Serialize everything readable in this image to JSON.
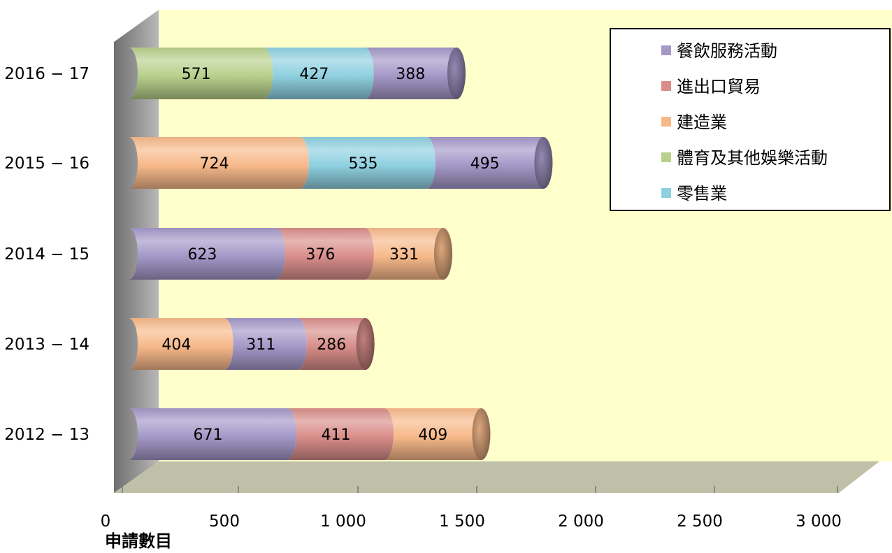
{
  "chart_data": {
    "type": "bar",
    "stacked": true,
    "orientation": "horizontal",
    "style": "3d-cylinder",
    "categories": [
      "2012 − 13",
      "2013 − 14",
      "2014 − 15",
      "2015 − 16",
      "2016 − 17"
    ],
    "bars": [
      {
        "category": "2012 − 13",
        "segments": [
          {
            "series": "餐飲服務活動",
            "value": 671
          },
          {
            "series": "進出口貿易",
            "value": 411
          },
          {
            "series": "建造業",
            "value": 409
          }
        ]
      },
      {
        "category": "2013 − 14",
        "segments": [
          {
            "series": "建造業",
            "value": 404
          },
          {
            "series": "餐飲服務活動",
            "value": 311
          },
          {
            "series": "進出口貿易",
            "value": 286
          }
        ]
      },
      {
        "category": "2014 − 15",
        "segments": [
          {
            "series": "餐飲服務活動",
            "value": 623
          },
          {
            "series": "進出口貿易",
            "value": 376
          },
          {
            "series": "建造業",
            "value": 331
          }
        ]
      },
      {
        "category": "2015 − 16",
        "segments": [
          {
            "series": "建造業",
            "value": 724
          },
          {
            "series": "零售業",
            "value": 535
          },
          {
            "series": "餐飲服務活動",
            "value": 495
          }
        ]
      },
      {
        "category": "2016 − 17",
        "segments": [
          {
            "series": "體育及其他娛樂活動",
            "value": 571
          },
          {
            "series": "零售業",
            "value": 427
          },
          {
            "series": "餐飲服務活動",
            "value": 388
          }
        ]
      }
    ],
    "legend": [
      {
        "name": "餐飲服務活動",
        "color": "#a498c8"
      },
      {
        "name": "進出口貿易",
        "color": "#d98e8a"
      },
      {
        "name": "建造業",
        "color": "#f7b98a"
      },
      {
        "name": "體育及其他娛樂活動",
        "color": "#b8d08c"
      },
      {
        "name": "零售業",
        "color": "#8fd0e0"
      }
    ],
    "legend_position": "top-right",
    "xlim": [
      0,
      3000
    ],
    "xticks": [
      0,
      500,
      1000,
      1500,
      2000,
      2500,
      3000
    ],
    "xtick_labels": [
      "0",
      "500",
      "1 000",
      "1 500",
      "2 000",
      "2 500",
      "3 000"
    ],
    "xlabel": "申請數目",
    "ylabel": "",
    "title": "",
    "grid": false,
    "colors": {
      "wall": "#ffffcc",
      "side_wall": "#a0a0a0",
      "floor": "#c0c0a8"
    }
  }
}
